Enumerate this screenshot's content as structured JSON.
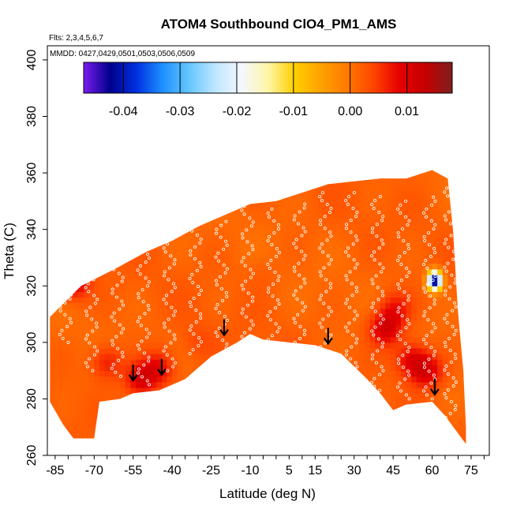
{
  "chart_data": {
    "type": "heatmap",
    "title": "ATOM4 Southbound ClO4_PM1_AMS",
    "flights_note": "Flts: 2,3,4,5,6,7",
    "dates_note": "MMDD: 0427,0429,0501,0503,0506,0509",
    "xlabel": "Latitude (deg N)",
    "ylabel": "Theta (C)",
    "xlim": [
      -88,
      82
    ],
    "ylim": [
      260,
      405
    ],
    "x_ticks": [
      -85,
      -70,
      -55,
      -40,
      -25,
      -10,
      5,
      15,
      30,
      45,
      60,
      75
    ],
    "y_ticks": [
      260,
      280,
      300,
      320,
      340,
      360,
      380,
      400
    ],
    "colorbar": {
      "min": -0.047,
      "max": 0.018,
      "ticks": [
        -0.04,
        -0.03,
        -0.02,
        -0.01,
        0.0,
        0.01
      ],
      "tick_labels": [
        "-0.04",
        "-0.03",
        "-0.02",
        "-0.01",
        "0.00",
        "0.01"
      ],
      "colors": [
        "#7a1cf0",
        "#00008b",
        "#0030e0",
        "#1e90ff",
        "#63c6ff",
        "#bfe6ff",
        "#f4f7ff",
        "#fff6a8",
        "#ffd000",
        "#ffa200",
        "#ff7a00",
        "#ff4500",
        "#e60000",
        "#c40000",
        "#7f1f1f"
      ]
    },
    "top_boundary": [
      [
        -87,
        309
      ],
      [
        -75,
        320
      ],
      [
        -62,
        326
      ],
      [
        -50,
        332
      ],
      [
        -40,
        336
      ],
      [
        -30,
        341
      ],
      [
        -20,
        345
      ],
      [
        -10,
        349
      ],
      [
        0,
        350
      ],
      [
        10,
        353
      ],
      [
        20,
        356
      ],
      [
        30,
        357
      ],
      [
        40,
        358
      ],
      [
        50,
        358
      ],
      [
        60,
        361
      ],
      [
        66,
        358
      ],
      [
        68,
        340
      ],
      [
        70,
        310
      ],
      [
        72,
        290
      ],
      [
        73,
        270
      ]
    ],
    "bottom_boundary": [
      [
        -87,
        279
      ],
      [
        -82,
        271
      ],
      [
        -78,
        266
      ],
      [
        -70,
        266
      ],
      [
        -68,
        279
      ],
      [
        -60,
        280
      ],
      [
        -55,
        282
      ],
      [
        -45,
        283
      ],
      [
        -35,
        287
      ],
      [
        -25,
        295
      ],
      [
        -15,
        300
      ],
      [
        -10,
        303
      ],
      [
        -5,
        301
      ],
      [
        5,
        300
      ],
      [
        15,
        299
      ],
      [
        25,
        296
      ],
      [
        35,
        287
      ],
      [
        40,
        282
      ],
      [
        45,
        276
      ],
      [
        50,
        278
      ],
      [
        60,
        279
      ],
      [
        65,
        274
      ],
      [
        73,
        264
      ]
    ],
    "hotspots": [
      {
        "lon": -78,
        "theta": 322,
        "value": 0.012
      },
      {
        "lon": -52,
        "theta": 287,
        "value": 0.011
      },
      {
        "lon": -45,
        "theta": 291,
        "value": 0.009
      },
      {
        "lon": -65,
        "theta": 293,
        "value": 0.008
      },
      {
        "lon": 42,
        "theta": 305,
        "value": 0.012
      },
      {
        "lon": 52,
        "theta": 294,
        "value": 0.01
      },
      {
        "lon": 58,
        "theta": 290,
        "value": 0.011
      },
      {
        "lon": 46,
        "theta": 312,
        "value": 0.008
      },
      {
        "lon": -5,
        "theta": 325,
        "value": 0.003
      },
      {
        "lon": 20,
        "theta": 315,
        "value": 0.002
      },
      {
        "lon": -30,
        "theta": 300,
        "value": 0.004
      }
    ],
    "anomaly": {
      "lon": 61,
      "theta": 322,
      "value": -0.045
    },
    "arrows": [
      {
        "lon": -55,
        "theta": 286
      },
      {
        "lon": -44,
        "theta": 288
      },
      {
        "lon": -20,
        "theta": 302
      },
      {
        "lon": 20,
        "theta": 299
      },
      {
        "lon": 61,
        "theta": 281
      }
    ],
    "flight_tracks": [
      {
        "lon": -81,
        "theta_min": 300,
        "theta_max": 322
      },
      {
        "lon": -71,
        "theta_min": 290,
        "theta_max": 325
      },
      {
        "lon": -61,
        "theta_min": 288,
        "theta_max": 330
      },
      {
        "lon": -51,
        "theta_min": 285,
        "theta_max": 333
      },
      {
        "lon": -41,
        "theta_min": 290,
        "theta_max": 336
      },
      {
        "lon": -31,
        "theta_min": 296,
        "theta_max": 340
      },
      {
        "lon": -21,
        "theta_min": 298,
        "theta_max": 344
      },
      {
        "lon": -11,
        "theta_min": 302,
        "theta_max": 349
      },
      {
        "lon": -1,
        "theta_min": 301,
        "theta_max": 348
      },
      {
        "lon": 9,
        "theta_min": 300,
        "theta_max": 350
      },
      {
        "lon": 19,
        "theta_min": 297,
        "theta_max": 354
      },
      {
        "lon": 29,
        "theta_min": 290,
        "theta_max": 353
      },
      {
        "lon": 39,
        "theta_min": 283,
        "theta_max": 352
      },
      {
        "lon": 49,
        "theta_min": 280,
        "theta_max": 351
      },
      {
        "lon": 59,
        "theta_min": 280,
        "theta_max": 352
      },
      {
        "lon": 67,
        "theta_min": 272,
        "theta_max": 360
      }
    ]
  }
}
